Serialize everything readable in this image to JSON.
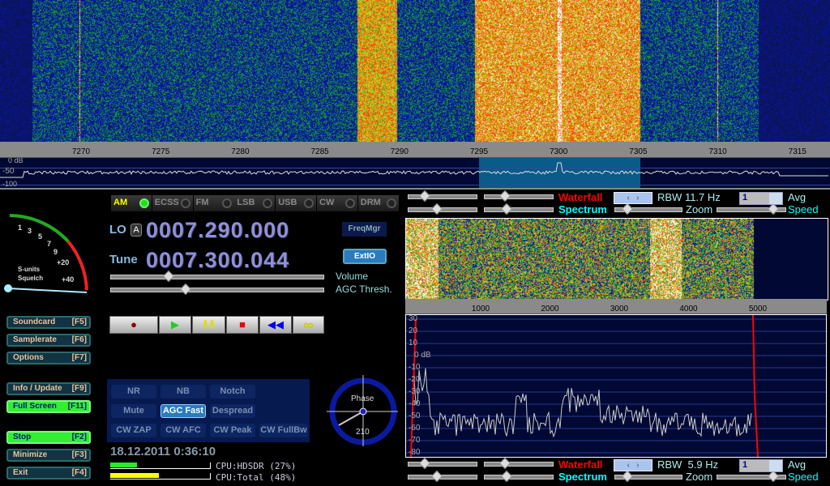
{
  "main_waterfall": {
    "freq_axis_khz": [
      "7270",
      "7275",
      "7280",
      "7285",
      "7290",
      "7295",
      "7300",
      "7305",
      "7310",
      "7315"
    ],
    "spectrum_labels": [
      "0 dB",
      "-50",
      "-100"
    ]
  },
  "modes": [
    {
      "label": "AM",
      "active": true
    },
    {
      "label": "ECSS"
    },
    {
      "label": "FM"
    },
    {
      "label": "LSB"
    },
    {
      "label": "USB"
    },
    {
      "label": "CW"
    },
    {
      "label": "DRM"
    }
  ],
  "smeter": {
    "scale": [
      "1",
      "3",
      "5",
      "7",
      "9",
      "+20",
      "+40"
    ],
    "label1": "S-units",
    "label2": "Squelch"
  },
  "lo": {
    "label": "LO",
    "badge": "A",
    "value": "0007.290.000"
  },
  "tune": {
    "label": "Tune",
    "value": "0007.300.044"
  },
  "buttons": {
    "freqmgr": "FreqMgr",
    "extio": "ExtIO"
  },
  "sliders": {
    "volume": "Volume",
    "agc": "AGC Thresh.",
    "volume_level": 0.27,
    "agc_level": 0.35
  },
  "side_buttons": [
    {
      "label": "Soundcard",
      "key": "[F5]"
    },
    {
      "label": "Samplerate",
      "key": "[F6]"
    },
    {
      "label": "Options",
      "key": "[F7]"
    },
    {
      "label": "Info / Update",
      "key": "[F9]"
    },
    {
      "label": "Full Screen",
      "key": "[F11]",
      "active": true
    },
    {
      "label": "Stop",
      "key": "[F2]",
      "active": true
    },
    {
      "label": "Minimize",
      "key": "[F3]"
    },
    {
      "label": "Exit",
      "key": "[F4]"
    }
  ],
  "transport": {
    "record": "●",
    "play": "▶",
    "pause": "❚❚",
    "stop": "■",
    "rewind": "◀◀",
    "loop": "∞"
  },
  "dsp": [
    [
      "NR",
      "NB",
      "Notch"
    ],
    [
      "Mute",
      "AGC Fast",
      "Despread"
    ],
    [
      "CW ZAP",
      "CW AFC",
      "CW Peak",
      "CW FullBw"
    ]
  ],
  "phase": {
    "label": "Phase",
    "value": "210"
  },
  "datetime": "18.12.2011 0:36:10",
  "cpu": {
    "hdsdr_label": "CPU:HDSDR (27%)",
    "total_label": "CPU:Total (48%)",
    "hdsdr": 27,
    "total": 48
  },
  "rf_controls": {
    "waterfall": "Waterfall",
    "spectrum": "Spectrum",
    "rbw": "RBW 11.7 Hz",
    "avg_value": "1",
    "avg": "Avg",
    "zoom": "Zoom",
    "speed": "Speed"
  },
  "af_controls": {
    "waterfall": "Waterfall",
    "spectrum": "Spectrum",
    "rbw": "RBW  5.9 Hz",
    "avg_value": "1",
    "avg": "Avg",
    "zoom": "Zoom",
    "speed": "Speed"
  },
  "audio_axis_hz": [
    "1000",
    "2000",
    "3000",
    "4000",
    "5000"
  ],
  "audio_db": [
    "30",
    "20",
    "10",
    "0 dB",
    "-10",
    "-20",
    "-30",
    "-40",
    "-50",
    "-60",
    "-70",
    "-80"
  ],
  "colors": {
    "waterfall": "#1030c0",
    "spectrum_bg": "#000833",
    "accent_red": "#ff0000",
    "accent_cyan": "#00ffff"
  }
}
